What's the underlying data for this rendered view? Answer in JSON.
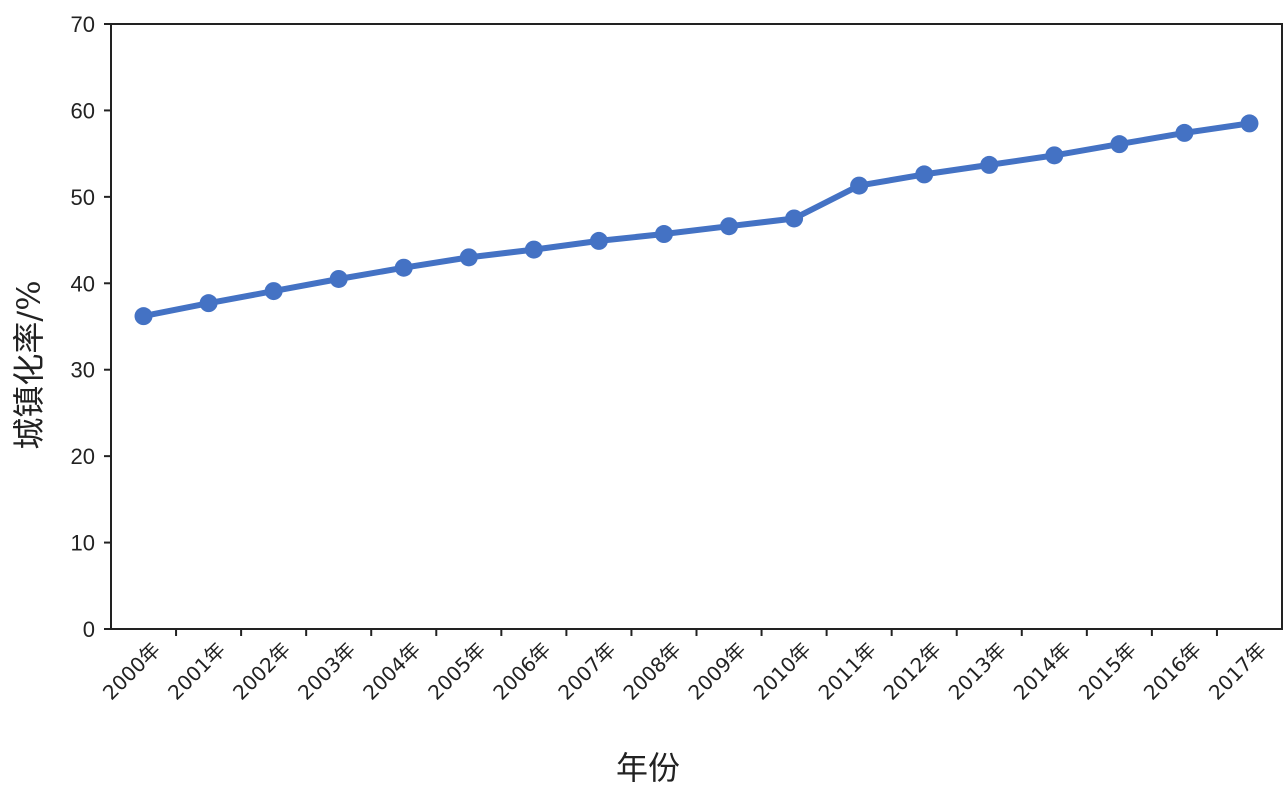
{
  "chart_data": {
    "type": "line",
    "title": "",
    "xlabel": "年份",
    "ylabel": "城镇化率/%",
    "categories": [
      "2000年",
      "2001年",
      "2002年",
      "2003年",
      "2004年",
      "2005年",
      "2006年",
      "2007年",
      "2008年",
      "2009年",
      "2010年",
      "2011年",
      "2012年",
      "2013年",
      "2014年",
      "2015年",
      "2016年",
      "2017年"
    ],
    "series": [
      {
        "values": [
          36.2,
          37.7,
          39.1,
          40.5,
          41.8,
          43.0,
          43.9,
          44.9,
          45.7,
          46.6,
          47.5,
          51.3,
          52.6,
          53.7,
          54.8,
          56.1,
          57.4,
          58.5
        ]
      }
    ],
    "ylim": [
      0,
      70
    ],
    "yticks": [
      0,
      10,
      20,
      30,
      40,
      50,
      60,
      70
    ],
    "grid": false,
    "legend": "none",
    "line_color": "#4472C4"
  }
}
